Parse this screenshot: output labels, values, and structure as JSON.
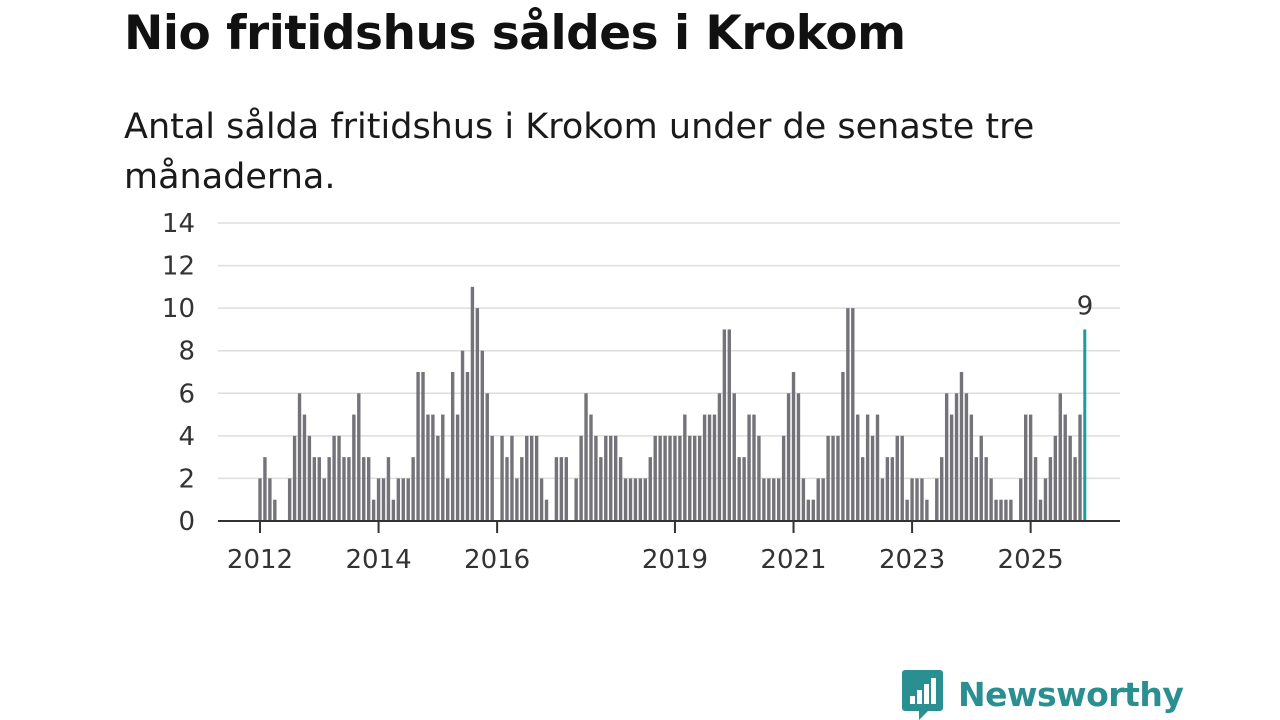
{
  "title": "Nio fritidshus såldes i Krokom",
  "subtitle": "Antal sålda fritidshus i Krokom under de senaste tre månaderna.",
  "brand": {
    "name": "Newsworthy",
    "icon": "chat-bar-chart-icon",
    "color": "#2a8f90"
  },
  "colors": {
    "bar": "#74737a",
    "highlight": "#1a9e9b",
    "grid": "#dddddd",
    "axis": "#333333"
  },
  "chart_data": {
    "type": "bar",
    "title": "Nio fritidshus såldes i Krokom",
    "xlabel": "",
    "ylabel": "",
    "ylim": [
      0,
      14
    ],
    "y_ticks": [
      "0",
      "2",
      "4",
      "6",
      "8",
      "10",
      "12",
      "14"
    ],
    "x_tick_labels": [
      {
        "label": "2012",
        "index": 0
      },
      {
        "label": "2014",
        "index": 24
      },
      {
        "label": "2016",
        "index": 48
      },
      {
        "label": "2019",
        "index": 84
      },
      {
        "label": "2021",
        "index": 108
      },
      {
        "label": "2023",
        "index": 132
      },
      {
        "label": "2025",
        "index": 156
      }
    ],
    "period_start": "2012-01",
    "frequency": "monthly",
    "highlight_label": "9",
    "values": [
      2,
      3,
      2,
      1,
      0,
      0,
      2,
      4,
      6,
      5,
      4,
      3,
      3,
      2,
      3,
      4,
      4,
      3,
      3,
      5,
      6,
      3,
      3,
      1,
      2,
      2,
      3,
      1,
      2,
      2,
      2,
      3,
      7,
      7,
      5,
      5,
      4,
      5,
      2,
      7,
      5,
      8,
      7,
      11,
      10,
      8,
      6,
      4,
      0,
      4,
      3,
      4,
      2,
      3,
      4,
      4,
      4,
      2,
      1,
      0,
      3,
      3,
      3,
      0,
      2,
      4,
      6,
      5,
      4,
      3,
      4,
      4,
      4,
      3,
      2,
      2,
      2,
      2,
      2,
      3,
      4,
      4,
      4,
      4,
      4,
      4,
      5,
      4,
      4,
      4,
      5,
      5,
      5,
      6,
      9,
      9,
      6,
      3,
      3,
      5,
      5,
      4,
      2,
      2,
      2,
      2,
      4,
      6,
      7,
      6,
      2,
      1,
      1,
      2,
      2,
      4,
      4,
      4,
      7,
      10,
      10,
      5,
      3,
      5,
      4,
      5,
      2,
      3,
      3,
      4,
      4,
      1,
      2,
      2,
      2,
      1,
      0,
      2,
      3,
      6,
      5,
      6,
      7,
      6,
      5,
      3,
      4,
      3,
      2,
      1,
      1,
      1,
      1,
      0,
      2,
      5,
      5,
      3,
      1,
      2,
      3,
      4,
      6,
      5,
      4,
      3,
      5,
      9
    ],
    "highlight": {
      "last_value": 9
    }
  }
}
